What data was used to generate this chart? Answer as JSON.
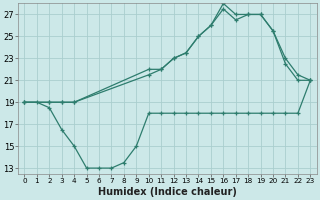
{
  "xlabel": "Humidex (Indice chaleur)",
  "line_color": "#2e7d6e",
  "bg_color": "#cce8e8",
  "grid_color": "#aacece",
  "xlim": [
    -0.5,
    23.5
  ],
  "ylim": [
    12.5,
    28
  ],
  "xticks": [
    0,
    1,
    2,
    3,
    4,
    5,
    6,
    7,
    8,
    9,
    10,
    11,
    12,
    13,
    14,
    15,
    16,
    17,
    18,
    19,
    20,
    21,
    22,
    23
  ],
  "yticks": [
    13,
    15,
    17,
    19,
    21,
    23,
    25,
    27
  ],
  "series": [
    {
      "x": [
        0,
        1,
        2,
        3,
        4,
        5,
        6,
        7,
        8,
        9,
        10,
        11,
        12,
        13,
        14,
        15,
        16,
        17,
        18,
        19,
        20,
        21,
        22,
        23
      ],
      "y": [
        19,
        19,
        18.5,
        16.5,
        15,
        13,
        13,
        13,
        13.5,
        15,
        18,
        18,
        18,
        18,
        18,
        18,
        18,
        18,
        18,
        18,
        18,
        18,
        18,
        21
      ]
    },
    {
      "x": [
        0,
        2,
        3,
        4,
        10,
        11,
        12,
        13,
        14,
        15,
        16,
        17,
        18,
        19,
        20,
        21,
        22,
        23
      ],
      "y": [
        19,
        19,
        19,
        19,
        22,
        22,
        23,
        23.5,
        25,
        26,
        27.5,
        26.5,
        27,
        27,
        25.5,
        22.5,
        21,
        21
      ]
    },
    {
      "x": [
        0,
        2,
        3,
        4,
        10,
        11,
        12,
        13,
        14,
        15,
        16,
        17,
        18,
        19,
        20,
        21,
        22,
        23
      ],
      "y": [
        19,
        19,
        19,
        19,
        21.5,
        22,
        23,
        23.5,
        25,
        26,
        28,
        27,
        27,
        27,
        25.5,
        23,
        21.5,
        21
      ]
    }
  ]
}
